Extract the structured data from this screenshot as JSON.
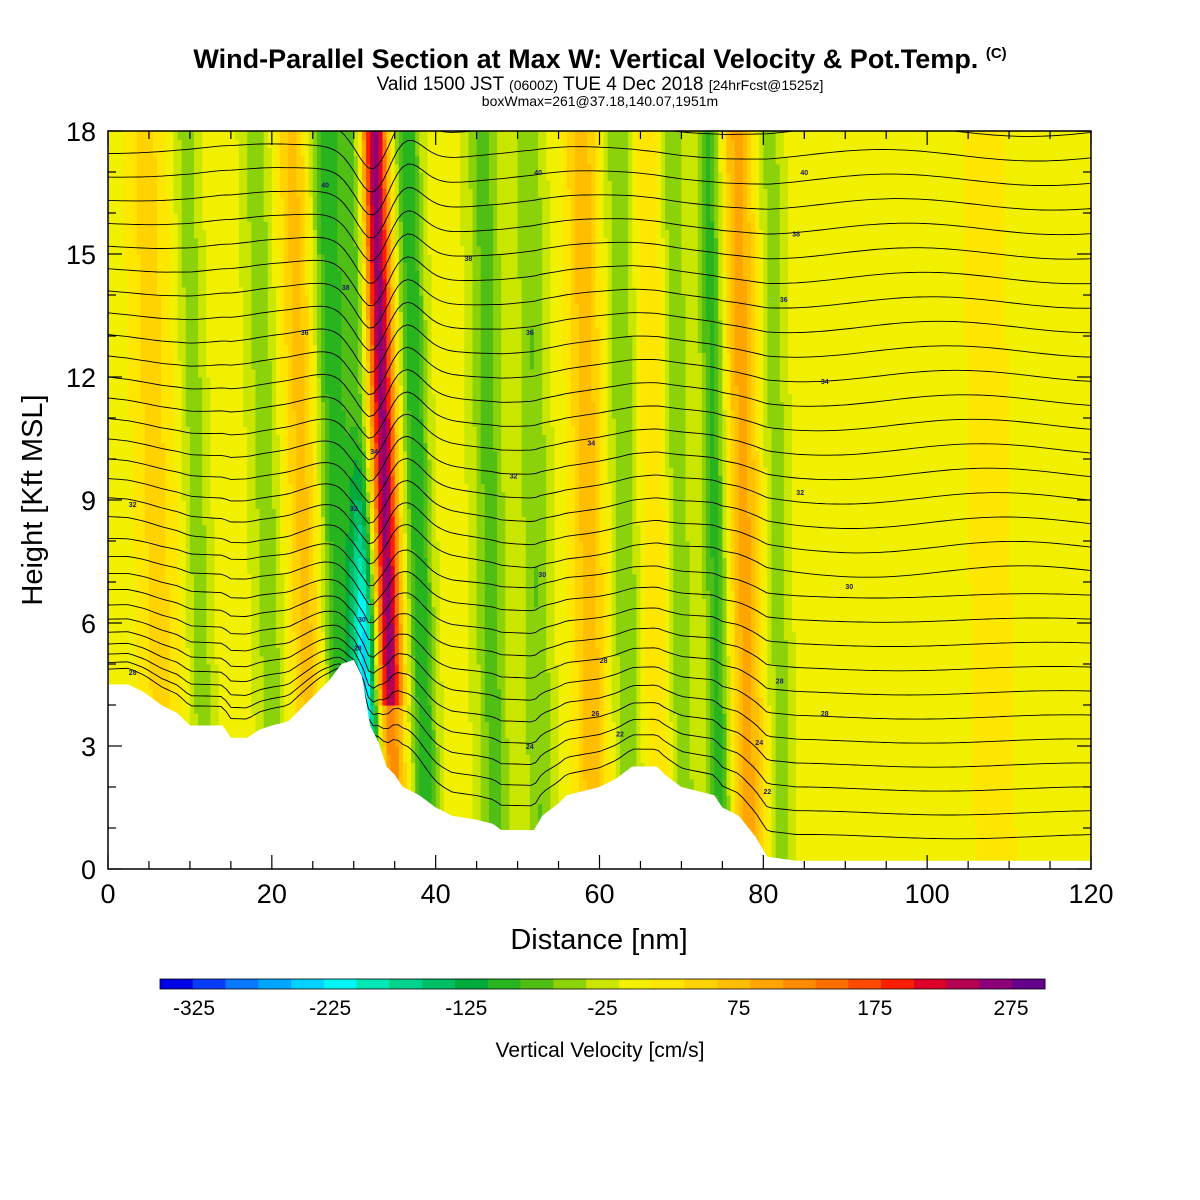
{
  "header": {
    "title": "Wind-Parallel Section at Max W: Vertical Velocity & Pot.Temp.",
    "title_tag": "(C)",
    "subtitle_main": "Valid 1500 JST",
    "subtitle_z": "(0600Z)",
    "subtitle_date": "TUE 4 Dec 2018",
    "subtitle_fcst": "[24hrFcst@1525z]",
    "subtitle2": "boxWmax=261@37.18,140.07,1951m"
  },
  "chart_data": {
    "type": "heatmap",
    "xlabel": "Distance [nm]",
    "ylabel": "Height [Kft MSL]",
    "xlim": [
      0,
      120
    ],
    "ylim": [
      0,
      18
    ],
    "x_ticks": [
      0,
      20,
      40,
      60,
      80,
      100,
      120
    ],
    "y_ticks": [
      0,
      3,
      6,
      9,
      12,
      15,
      18
    ],
    "colorbar": {
      "title": "Vertical Velocity [cm/s]",
      "tick_labels": [
        "-325",
        "-225",
        "-125",
        "-25",
        "75",
        "175",
        "275"
      ],
      "tick_values": [
        -325,
        -225,
        -125,
        -25,
        75,
        175,
        275
      ],
      "bounds": [
        -350,
        -325,
        -300,
        -275,
        -250,
        -225,
        -200,
        -175,
        -150,
        -125,
        -100,
        -75,
        -50,
        -25,
        0,
        25,
        50,
        75,
        100,
        125,
        150,
        175,
        200,
        225,
        250,
        275,
        300
      ],
      "colors": [
        "#0000e6",
        "#0a3cff",
        "#0a78ff",
        "#00a5ff",
        "#00d2ff",
        "#00f5f5",
        "#00e6b4",
        "#00d28c",
        "#00be64",
        "#00aa3c",
        "#28b41e",
        "#50be14",
        "#8cd20a",
        "#c8e600",
        "#f0f000",
        "#ffe600",
        "#ffd200",
        "#ffbe00",
        "#ffa500",
        "#ff8c00",
        "#ff6e00",
        "#ff4b00",
        "#ff1e00",
        "#dc0028",
        "#b40050",
        "#8c0078",
        "#64008c"
      ]
    },
    "terrain_kft": [
      [
        0,
        4.5
      ],
      [
        2.5,
        4.5
      ],
      [
        4.5,
        4.3
      ],
      [
        6.5,
        4
      ],
      [
        8.5,
        3.8
      ],
      [
        10,
        3.5
      ],
      [
        12,
        3.5
      ],
      [
        14,
        3.5
      ],
      [
        15,
        3.2
      ],
      [
        17,
        3.2
      ],
      [
        18.5,
        3.4
      ],
      [
        20,
        3.5
      ],
      [
        22,
        3.6
      ],
      [
        24,
        4
      ],
      [
        25.5,
        4.3
      ],
      [
        27,
        4.6
      ],
      [
        28.5,
        5
      ],
      [
        30,
        5.1
      ],
      [
        31,
        4.7
      ],
      [
        32,
        3.5
      ],
      [
        33,
        3.1
      ],
      [
        34,
        2.5
      ],
      [
        35,
        2.3
      ],
      [
        36,
        2
      ],
      [
        38,
        1.8
      ],
      [
        40,
        1.5
      ],
      [
        42,
        1.3
      ],
      [
        45,
        1.2
      ],
      [
        47,
        1.1
      ],
      [
        48,
        0.95
      ],
      [
        52,
        0.95
      ],
      [
        53,
        1.3
      ],
      [
        55,
        1.6
      ],
      [
        56,
        1.8
      ],
      [
        58,
        1.9
      ],
      [
        60,
        2.0
      ],
      [
        62,
        2.2
      ],
      [
        64,
        2.5
      ],
      [
        66,
        2.5
      ],
      [
        67,
        2.5
      ],
      [
        68,
        2.3
      ],
      [
        70,
        2.0
      ],
      [
        72,
        1.9
      ],
      [
        74,
        1.8
      ],
      [
        75,
        1.5
      ],
      [
        77,
        1.3
      ],
      [
        79,
        0.8
      ],
      [
        80.5,
        0.3
      ],
      [
        84,
        0.2
      ],
      [
        120,
        0.2
      ],
      [
        120,
        0
      ]
    ],
    "velocity_features": [
      {
        "x": 34.5,
        "peak_cm_s": 275,
        "half_width_nm": 1.5
      },
      {
        "x": 31.5,
        "peak_cm_s": -230,
        "half_width_nm": 1.5
      },
      {
        "x": 28.5,
        "peak_cm_s": -100,
        "half_width_nm": 2.0
      },
      {
        "x": 38.5,
        "peak_cm_s": -110,
        "half_width_nm": 1.5
      },
      {
        "x": 24.5,
        "peak_cm_s": 75,
        "half_width_nm": 2.0
      },
      {
        "x": 20,
        "peak_cm_s": -50,
        "half_width_nm": 1.8
      },
      {
        "x": 11.5,
        "peak_cm_s": -50,
        "half_width_nm": 1.5
      },
      {
        "x": 6.5,
        "peak_cm_s": 50,
        "half_width_nm": 2.5
      },
      {
        "x": 47,
        "peak_cm_s": -70,
        "half_width_nm": 2.0
      },
      {
        "x": 52.5,
        "peak_cm_s": -60,
        "half_width_nm": 1.8
      },
      {
        "x": 59,
        "peak_cm_s": 80,
        "half_width_nm": 2.0
      },
      {
        "x": 63.5,
        "peak_cm_s": -60,
        "half_width_nm": 1.8
      },
      {
        "x": 67,
        "peak_cm_s": 40,
        "half_width_nm": 2.0
      },
      {
        "x": 70,
        "peak_cm_s": -60,
        "half_width_nm": 1.5
      },
      {
        "x": 74.5,
        "peak_cm_s": -95,
        "half_width_nm": 1.5
      },
      {
        "x": 78,
        "peak_cm_s": 100,
        "half_width_nm": 2.0
      },
      {
        "x": 82,
        "peak_cm_s": -50,
        "half_width_nm": 1.5
      },
      {
        "x": 108,
        "peak_cm_s": 30,
        "half_width_nm": 3.0
      }
    ],
    "contour_labels": [
      {
        "text": "40",
        "x": 26.5,
        "y": 16.7
      },
      {
        "text": "40",
        "x": 52.5,
        "y": 17.0
      },
      {
        "text": "40",
        "x": 85,
        "y": 17.0
      },
      {
        "text": "38",
        "x": 44,
        "y": 14.9
      },
      {
        "text": "38",
        "x": 84,
        "y": 15.5
      },
      {
        "text": "38",
        "x": 29,
        "y": 14.2
      },
      {
        "text": "36",
        "x": 24,
        "y": 13.1
      },
      {
        "text": "36",
        "x": 51.5,
        "y": 13.1
      },
      {
        "text": "36",
        "x": 82.5,
        "y": 13.9
      },
      {
        "text": "34",
        "x": 32.5,
        "y": 10.2
      },
      {
        "text": "34",
        "x": 59,
        "y": 10.4
      },
      {
        "text": "34",
        "x": 87.5,
        "y": 11.9
      },
      {
        "text": "32",
        "x": 3,
        "y": 8.9
      },
      {
        "text": "32",
        "x": 49.5,
        "y": 9.6
      },
      {
        "text": "32",
        "x": 84.5,
        "y": 9.2
      },
      {
        "text": "32",
        "x": 30,
        "y": 8.8
      },
      {
        "text": "30",
        "x": 53,
        "y": 7.2
      },
      {
        "text": "30",
        "x": 90.5,
        "y": 6.9
      },
      {
        "text": "30",
        "x": 31,
        "y": 6.1
      },
      {
        "text": "28",
        "x": 30.5,
        "y": 5.4
      },
      {
        "text": "28",
        "x": 3,
        "y": 4.8
      },
      {
        "text": "28",
        "x": 60.5,
        "y": 5.1
      },
      {
        "text": "28",
        "x": 82,
        "y": 4.6
      },
      {
        "text": "28",
        "x": 87.5,
        "y": 3.8
      },
      {
        "text": "26",
        "x": 59.5,
        "y": 3.8
      },
      {
        "text": "24",
        "x": 51.5,
        "y": 3.0
      },
      {
        "text": "24",
        "x": 79.5,
        "y": 3.1
      },
      {
        "text": "22",
        "x": 62.5,
        "y": 3.3
      },
      {
        "text": "22",
        "x": 80.5,
        "y": 1.9
      }
    ]
  }
}
